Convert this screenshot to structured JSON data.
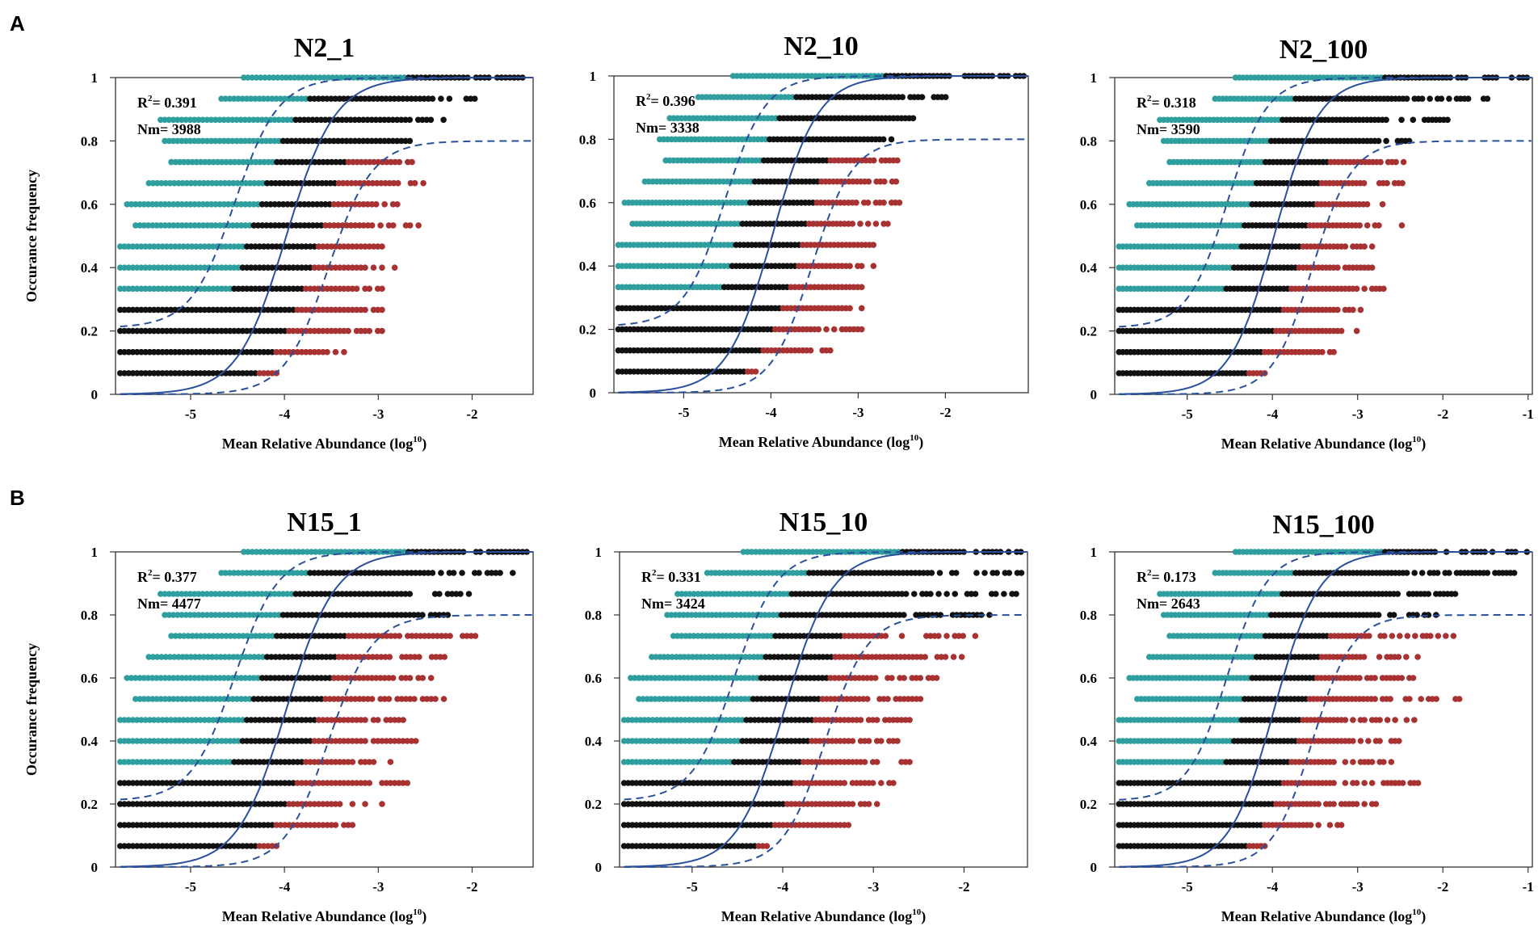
{
  "figure": {
    "panel_labels": [
      "A",
      "B"
    ],
    "xlabel": "Mean Relative Abundance (log",
    "xlabel_sup": "10",
    "xlabel_close": ")",
    "ylabel": "Occurance frequency",
    "r2_prefix": "R",
    "r2_sup": "2",
    "nm_prefix": "Nm= "
  },
  "colors": {
    "above": "#2e9e9e",
    "neutral": "#111111",
    "below": "#a83232",
    "fit": "#2a4f9c",
    "frame": "#333333"
  },
  "chart_data": [
    {
      "type": "scatter",
      "title": "N2_1",
      "r2": "= 0.391",
      "nm": "3988",
      "xlim": [
        -5.8,
        -1.35
      ],
      "ylim": [
        0,
        1
      ],
      "m": -3.98,
      "s": 0.26,
      "xticks": [
        -5,
        -4,
        -3,
        -2
      ],
      "yticks": [
        0,
        0.2,
        0.4,
        0.6,
        0.8,
        1
      ],
      "xmin_pts": -5.75,
      "ext": [
        0.6,
        1.3,
        1.5,
        1.3,
        1.25,
        1.3,
        1.15,
        1.45,
        1.1,
        1.3,
        1.1,
        1.0,
        1.3,
        1.4,
        1.5
      ],
      "left_ext": [
        0.35,
        0.5,
        0.45,
        0.55,
        0.5,
        0.45,
        0.5,
        0.4,
        0.45,
        0.4,
        0.35,
        0.4,
        0.45,
        0.3,
        0.35
      ]
    },
    {
      "type": "scatter",
      "title": "N2_10",
      "r2": "= 0.396",
      "nm": "3338",
      "xlim": [
        -5.8,
        -1.05
      ],
      "ylim": [
        0,
        1
      ],
      "m": -3.98,
      "s": 0.26,
      "xticks": [
        -5,
        -4,
        -3,
        -2
      ],
      "yticks": [
        0,
        0.2,
        0.4,
        0.6,
        0.8,
        1
      ],
      "xmin_pts": -5.75,
      "ext": [
        0.5,
        1.2,
        1.4,
        1.3,
        1.25,
        1.3,
        1.2,
        1.35,
        1.4,
        1.25,
        1.2,
        1.1,
        1.2,
        1.45,
        1.9
      ],
      "left_ext": [
        0.35,
        0.45,
        0.45,
        0.5,
        0.5,
        0.45,
        0.45,
        0.4,
        0.45,
        0.4,
        0.35,
        0.4,
        0.4,
        0.35,
        0.35
      ]
    },
    {
      "type": "scatter",
      "title": "N2_100",
      "r2": "= 0.318",
      "nm": "3590",
      "xlim": [
        -5.85,
        -0.95
      ],
      "ylim": [
        0,
        1
      ],
      "m": -3.98,
      "s": 0.26,
      "xticks": [
        -5,
        -4,
        -3,
        -2,
        -1
      ],
      "yticks": [
        0,
        0.2,
        0.4,
        0.6,
        0.8,
        1
      ],
      "xmin_pts": -5.8,
      "ext": [
        0.6,
        1.2,
        1.4,
        1.3,
        1.5,
        1.3,
        1.2,
        1.6,
        1.3,
        1.4,
        1.3,
        1.3,
        1.6,
        1.9,
        2.5
      ],
      "left_ext": [
        0.35,
        0.5,
        0.45,
        0.55,
        0.5,
        0.45,
        0.5,
        0.4,
        0.45,
        0.4,
        0.35,
        0.4,
        0.45,
        0.3,
        0.35
      ]
    },
    {
      "type": "scatter",
      "title": "N15_1",
      "r2": "= 0.377",
      "nm": "4477",
      "xlim": [
        -5.8,
        -1.35
      ],
      "ylim": [
        0,
        1
      ],
      "m": -3.98,
      "s": 0.26,
      "xticks": [
        -5,
        -4,
        -3,
        -2
      ],
      "yticks": [
        0,
        0.2,
        0.4,
        0.6,
        0.8,
        1
      ],
      "xmin_pts": -5.75,
      "ext": [
        0.6,
        1.2,
        1.4,
        1.6,
        1.3,
        1.5,
        1.3,
        1.7,
        1.5,
        1.6,
        1.8,
        1.5,
        1.5,
        1.8,
        2.0
      ],
      "left_ext": [
        0.35,
        0.5,
        0.45,
        0.55,
        0.5,
        0.45,
        0.5,
        0.4,
        0.45,
        0.4,
        0.35,
        0.4,
        0.45,
        0.3,
        0.35
      ]
    },
    {
      "type": "scatter",
      "title": "N15_10",
      "r2": "= 0.331",
      "nm": "3424",
      "xlim": [
        -5.8,
        -1.3
      ],
      "ylim": [
        0,
        1
      ],
      "m": -3.98,
      "s": 0.26,
      "xticks": [
        -5,
        -4,
        -3,
        -2
      ],
      "yticks": [
        0,
        0.2,
        0.4,
        0.6,
        0.8,
        1
      ],
      "xmin_pts": -5.75,
      "ext": [
        0.5,
        1.2,
        1.4,
        1.5,
        1.6,
        1.4,
        1.5,
        1.5,
        1.6,
        1.8,
        1.9,
        2.0,
        2.2,
        2.2,
        2.2
      ],
      "left_ext": [
        0.35,
        0.45,
        0.45,
        0.5,
        0.5,
        0.45,
        0.45,
        0.4,
        0.45,
        0.4,
        0.35,
        0.4,
        0.4,
        0.35,
        0.35
      ]
    },
    {
      "type": "scatter",
      "title": "N15_100",
      "r2": "= 0.173",
      "nm": "2643",
      "xlim": [
        -5.85,
        -0.95
      ],
      "ylim": [
        0,
        1
      ],
      "m": -3.98,
      "s": 0.26,
      "xticks": [
        -5,
        -4,
        -3,
        -2,
        -1
      ],
      "yticks": [
        0,
        0.2,
        0.4,
        0.6,
        0.8,
        1
      ],
      "xmin_pts": -5.8,
      "ext": [
        0.6,
        1.3,
        1.6,
        2.0,
        1.6,
        1.6,
        1.7,
        2.3,
        1.6,
        1.6,
        1.9,
        1.6,
        1.7,
        2.2,
        2.4
      ],
      "left_ext": [
        0.35,
        0.5,
        0.45,
        0.55,
        0.5,
        0.45,
        0.5,
        0.4,
        0.45,
        0.4,
        0.35,
        0.4,
        0.45,
        0.3,
        0.35
      ]
    }
  ]
}
